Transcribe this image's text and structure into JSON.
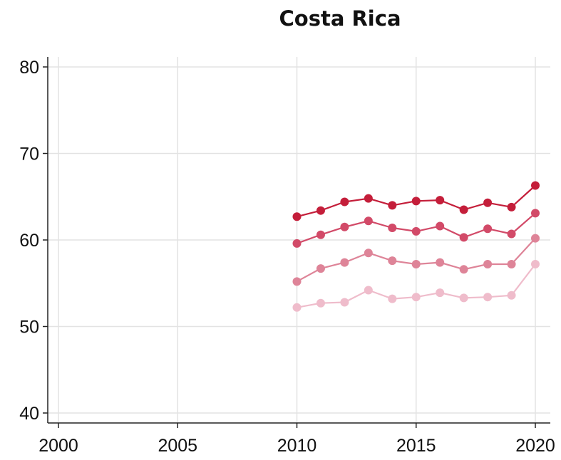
{
  "chart_data": {
    "type": "line",
    "title": "Costa Rica",
    "xlabel": "",
    "ylabel": "",
    "xlim": [
      2000,
      2020
    ],
    "ylim": [
      40,
      80
    ],
    "xticks": [
      2000,
      2005,
      2010,
      2015,
      2020
    ],
    "yticks": [
      40,
      50,
      60,
      70,
      80
    ],
    "grid": true,
    "legend": "none",
    "x": [
      2010,
      2011,
      2012,
      2013,
      2014,
      2015,
      2016,
      2017,
      2018,
      2019,
      2020
    ],
    "series": [
      {
        "color": "#c41e3a",
        "values": [
          62.7,
          63.4,
          64.4,
          64.8,
          64.0,
          64.5,
          64.6,
          63.5,
          64.3,
          63.8,
          66.3
        ]
      },
      {
        "color": "#d24a68",
        "values": [
          59.6,
          60.6,
          61.5,
          62.2,
          61.4,
          61.0,
          61.6,
          60.3,
          61.3,
          60.7,
          63.1
        ]
      },
      {
        "color": "#de8498",
        "values": [
          55.2,
          56.7,
          57.4,
          58.5,
          57.6,
          57.2,
          57.4,
          56.6,
          57.2,
          57.2,
          60.2
        ]
      },
      {
        "color": "#efbccb",
        "values": [
          52.2,
          52.7,
          52.8,
          54.2,
          53.2,
          53.4,
          53.9,
          53.3,
          53.4,
          53.6,
          57.2
        ]
      }
    ]
  }
}
